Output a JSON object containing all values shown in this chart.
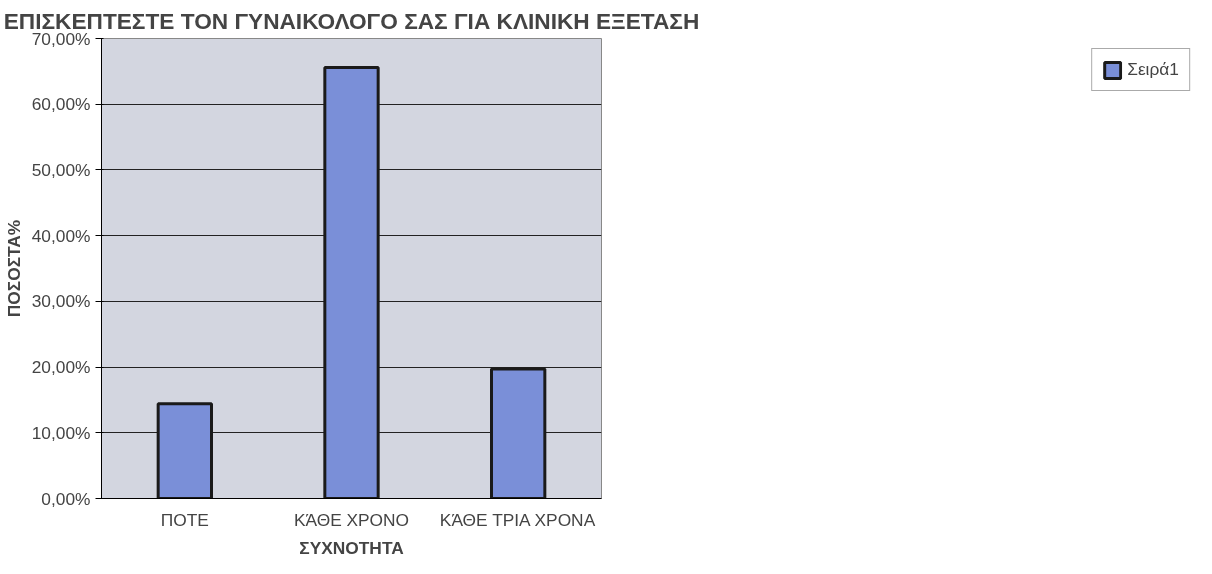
{
  "chart_data": {
    "type": "bar",
    "title": "ΕΠΙΣΚΕΠΤΕΣΤΕ ΤΟΝ ΓΥΝΑΙΚΟΛΟΓΟ ΣΑΣ ΓΙΑ ΚΛΙΝΙΚΗ ΕΞΕΤΑΣΗ",
    "xlabel": "ΣΥΧΝΟΤΗΤΑ",
    "ylabel": "ΠΟΣΟΣΤΑ%",
    "categories": [
      "ΠΟΤΕ",
      "ΚΆΘΕ ΧΡΟΝΟ",
      "ΚΆΘΕ ΤΡΙΑ ΧΡΟΝΑ"
    ],
    "series": [
      {
        "name": "Σειρά1",
        "color": "#7a8fd8",
        "values": [
          14.4,
          65.6,
          19.7
        ]
      }
    ],
    "ylim": [
      0,
      70
    ],
    "yticks": [
      {
        "value": 0,
        "label": "0,00%"
      },
      {
        "value": 10,
        "label": "10,00%"
      },
      {
        "value": 20,
        "label": "20,00%"
      },
      {
        "value": 30,
        "label": "30,00%"
      },
      {
        "value": 40,
        "label": "40,00%"
      },
      {
        "value": 50,
        "label": "50,00%"
      },
      {
        "value": 60,
        "label": "60,00%"
      },
      {
        "value": 70,
        "label": "70,00%"
      }
    ],
    "grid": "y",
    "legend": "right"
  }
}
